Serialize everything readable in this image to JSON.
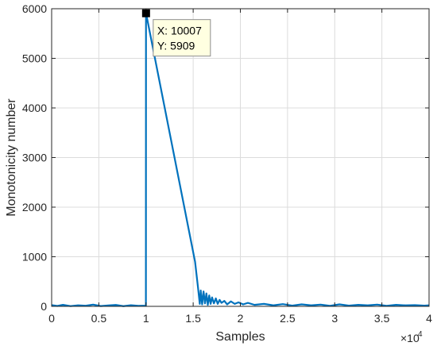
{
  "chart_data": {
    "type": "line",
    "xlabel": "Samples",
    "ylabel": "Monotonicity number",
    "xlim": [
      0,
      40000
    ],
    "ylim": [
      0,
      6000
    ],
    "x_multiplier_label": "×10",
    "x_multiplier_exponent": "4",
    "x_ticks": [
      0,
      5000,
      10000,
      15000,
      20000,
      25000,
      30000,
      35000,
      40000
    ],
    "x_tick_labels": [
      "0",
      "0.5",
      "1",
      "1.5",
      "2",
      "2.5",
      "3",
      "3.5",
      "4"
    ],
    "y_ticks": [
      0,
      1000,
      2000,
      3000,
      4000,
      5000,
      6000
    ],
    "y_tick_labels": [
      "0",
      "1000",
      "2000",
      "3000",
      "4000",
      "5000",
      "6000"
    ],
    "grid": true,
    "line_color": "#0072BD",
    "series": [
      {
        "x": [
          0,
          600,
          1200,
          2000,
          2800,
          3600,
          4400,
          5200,
          6000,
          6800,
          7600,
          8400,
          9200,
          9990,
          10000,
          10007,
          15200,
          15500,
          15700,
          15800,
          15950,
          16100,
          16250,
          16400,
          16550,
          16700,
          16850,
          17000,
          17200,
          17400,
          17600,
          17800,
          18000,
          18300,
          18600,
          19000,
          19400,
          19800,
          20300,
          20800,
          21500,
          22500,
          23500,
          24500,
          25500,
          26500,
          27500,
          28500,
          29500,
          30500,
          31500,
          32500,
          33500,
          34500,
          35500,
          36500,
          37500,
          38500,
          39500,
          40000
        ],
        "y": [
          25,
          8,
          30,
          5,
          20,
          12,
          35,
          6,
          18,
          28,
          4,
          22,
          10,
          15,
          5909,
          5909,
          900,
          400,
          50,
          320,
          40,
          300,
          60,
          260,
          30,
          220,
          50,
          180,
          60,
          160,
          50,
          130,
          70,
          110,
          40,
          100,
          50,
          80,
          40,
          70,
          30,
          50,
          20,
          45,
          15,
          40,
          20,
          35,
          10,
          40,
          15,
          30,
          20,
          35,
          10,
          30,
          20,
          25,
          15,
          20
        ]
      }
    ],
    "datatip": {
      "x_text": "X: 10007",
      "y_text": "Y: 5909",
      "x": 10007,
      "y": 5909
    }
  }
}
